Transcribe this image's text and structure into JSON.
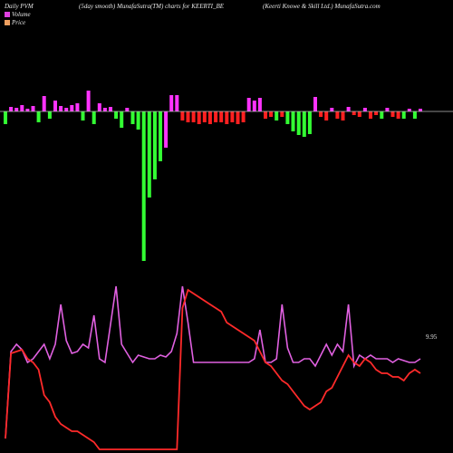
{
  "header": {
    "left": "Daily PVM",
    "center": "(5day smooth) MunafaSutra(TM) charts for KEERTI_BE",
    "right": "(Keerti  Knowe  & Skill Ltd.) MunafaSutra.com"
  },
  "legend": [
    {
      "label": "Volume",
      "color": "#e040e0"
    },
    {
      "label": "Price",
      "color": "#f0a060"
    }
  ],
  "last_price_label": "9.95",
  "colors": {
    "background": "#000000",
    "volume_up": "#ff33ff",
    "volume_down": "#ff2020",
    "volume_green": "#33ff33",
    "price_line": "#ff2a2a",
    "volume_line": "#e060e0",
    "baseline": "#bbbbbb"
  },
  "chart_data": {
    "type": "bar",
    "x": [
      1,
      2,
      3,
      4,
      5,
      6,
      7,
      8,
      9,
      10,
      11,
      12,
      13,
      14,
      15,
      16,
      17,
      18,
      19,
      20,
      21,
      22,
      23,
      24,
      25,
      26,
      27,
      28,
      29,
      30,
      31,
      32,
      33,
      34,
      35,
      36,
      37,
      38,
      39,
      40,
      41,
      42,
      43,
      44,
      45,
      46,
      47,
      48,
      49,
      50,
      51,
      52,
      53,
      54,
      55,
      56,
      57,
      58,
      59,
      60,
      61,
      62,
      63,
      64,
      65,
      66,
      67,
      68,
      69,
      70,
      71,
      72,
      73,
      74,
      75,
      76
    ],
    "bar_colors": [
      "green",
      "magenta",
      "magenta",
      "magenta",
      "magenta",
      "magenta",
      "green",
      "magenta",
      "green",
      "magenta",
      "magenta",
      "magenta",
      "magenta",
      "magenta",
      "green",
      "magenta",
      "green",
      "magenta",
      "magenta",
      "magenta",
      "green",
      "green",
      "magenta",
      "green",
      "green",
      "green",
      "green",
      "green",
      "green",
      "magenta",
      "magenta",
      "magenta",
      "red",
      "red",
      "red",
      "red",
      "red",
      "red",
      "red",
      "red",
      "red",
      "red",
      "red",
      "red",
      "magenta",
      "magenta",
      "magenta",
      "red",
      "red",
      "green",
      "red",
      "green",
      "green",
      "green",
      "green",
      "green",
      "magenta",
      "red",
      "red",
      "magenta",
      "red",
      "red",
      "magenta",
      "red",
      "red",
      "magenta",
      "red",
      "red",
      "green",
      "magenta",
      "red",
      "red",
      "green",
      "magenta",
      "green",
      "magenta"
    ],
    "bar_values": [
      -14,
      5,
      4,
      7,
      3,
      6,
      -12,
      17,
      -8,
      12,
      6,
      4,
      7,
      9,
      -10,
      23,
      -14,
      9,
      4,
      5,
      -8,
      -18,
      4,
      -14,
      -20,
      -165,
      -95,
      -75,
      -55,
      -40,
      18,
      18,
      -10,
      -12,
      -12,
      -14,
      -12,
      -14,
      -12,
      -12,
      -14,
      -12,
      -14,
      -12,
      15,
      12,
      15,
      -8,
      -6,
      -10,
      -6,
      -14,
      -22,
      -26,
      -28,
      -25,
      16,
      -6,
      -10,
      4,
      -8,
      -10,
      5,
      -4,
      -6,
      4,
      -8,
      -4,
      -8,
      4,
      -6,
      -8,
      -8,
      3,
      -8,
      3
    ],
    "volume_line": [
      8,
      56,
      60,
      57,
      50,
      52,
      56,
      60,
      52,
      60,
      82,
      62,
      55,
      56,
      60,
      58,
      76,
      52,
      50,
      71,
      92,
      60,
      55,
      50,
      54,
      53,
      52,
      52,
      54,
      53,
      56,
      66,
      92,
      72,
      50,
      50,
      50,
      50,
      50,
      50,
      50,
      50,
      50,
      50,
      50,
      52,
      68,
      50,
      50,
      52,
      82,
      58,
      50,
      50,
      52,
      52,
      48,
      54,
      60,
      54,
      60,
      56,
      82,
      48,
      54,
      52,
      54,
      52,
      52,
      52,
      50,
      52,
      51,
      50,
      50,
      52
    ],
    "price_line": [
      8,
      55,
      56,
      57,
      52,
      50,
      46,
      32,
      28,
      20,
      16,
      14,
      12,
      12,
      10,
      8,
      6,
      2,
      2,
      2,
      2,
      2,
      2,
      2,
      2,
      2,
      2,
      2,
      2,
      2,
      2,
      2,
      80,
      90,
      88,
      86,
      84,
      82,
      80,
      78,
      72,
      70,
      68,
      66,
      64,
      62,
      56,
      50,
      48,
      44,
      40,
      38,
      34,
      30,
      26,
      24,
      26,
      28,
      34,
      36,
      42,
      48,
      54,
      50,
      48,
      52,
      50,
      46,
      44,
      44,
      42,
      42,
      40,
      44,
      46,
      44
    ]
  }
}
